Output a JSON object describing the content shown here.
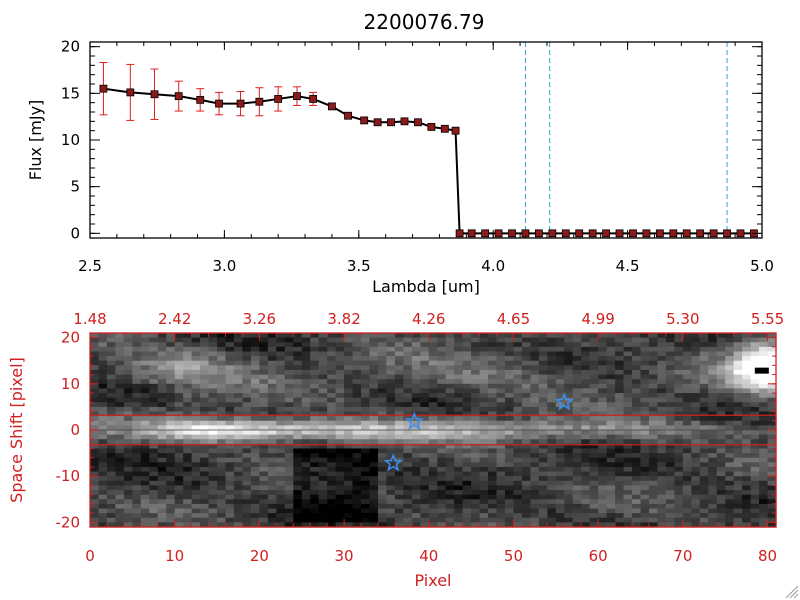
{
  "title": "2200076.79",
  "colors": {
    "flux_line": "#000000",
    "flux_marker": "#8b1a1a",
    "error_bar": "#dd2020",
    "vline": "#2aa6c8",
    "image_axis": "#d02020",
    "star": "#3a8ff0",
    "trace_box": "#d02020"
  },
  "chart_data": [
    {
      "type": "line",
      "title": "2200076.79",
      "xlabel": "Lambda [um]",
      "ylabel": "Flux [mJy]",
      "xlim": [
        2.5,
        5.0
      ],
      "ylim": [
        -0.5,
        20.5
      ],
      "xticks": [
        2.5,
        3.0,
        3.5,
        4.0,
        4.5,
        5.0
      ],
      "xtick_labels": [
        "2.5",
        "3.0",
        "3.5",
        "4.0",
        "4.5",
        "5.0"
      ],
      "yticks": [
        0,
        5,
        10,
        15,
        20
      ],
      "ytick_labels": [
        "0",
        "5",
        "10",
        "15",
        "20"
      ],
      "grid": false,
      "series": [
        {
          "x": [
            2.55,
            2.65,
            2.74,
            2.83,
            2.91,
            2.98,
            3.06,
            3.13,
            3.2,
            3.27,
            3.33,
            3.4,
            3.46,
            3.52,
            3.57,
            3.62,
            3.67,
            3.72,
            3.77,
            3.82,
            3.86,
            3.875,
            3.92,
            3.97,
            4.02,
            4.07,
            4.12,
            4.17,
            4.22,
            4.27,
            4.32,
            4.37,
            4.42,
            4.47,
            4.52,
            4.57,
            4.62,
            4.67,
            4.72,
            4.77,
            4.82,
            4.87,
            4.92,
            4.97
          ],
          "y": [
            15.5,
            15.1,
            14.9,
            14.7,
            14.3,
            13.9,
            13.9,
            14.1,
            14.4,
            14.7,
            14.4,
            13.6,
            12.6,
            12.1,
            11.9,
            11.9,
            12.0,
            11.9,
            11.4,
            11.2,
            11.0,
            0,
            0,
            0,
            0,
            0,
            0,
            0,
            0,
            0,
            0,
            0,
            0,
            0,
            0,
            0,
            0,
            0,
            0,
            0,
            0,
            0,
            0,
            0
          ],
          "yerr": [
            2.8,
            3.0,
            2.7,
            1.6,
            1.2,
            1.2,
            1.3,
            1.5,
            1.3,
            1.0,
            0.7,
            0.3,
            0.3,
            0.3,
            0.2,
            0.2,
            0.2,
            0.2,
            0.2,
            0.2,
            0.2,
            0,
            0,
            0,
            0,
            0,
            0,
            0,
            0,
            0,
            0,
            0,
            0,
            0,
            0,
            0,
            0,
            0,
            0,
            0,
            0,
            0,
            0,
            0
          ]
        }
      ],
      "vlines": [
        4.12,
        4.21,
        4.87
      ]
    },
    {
      "type": "heatmap",
      "xlabel": "Pixel",
      "ylabel": "Space Shift [pixel]",
      "xlim": [
        0,
        81
      ],
      "ylim": [
        -21,
        21
      ],
      "xticks": [
        0,
        10,
        20,
        30,
        40,
        50,
        60,
        70,
        80
      ],
      "xtick_labels": [
        "0",
        "10",
        "20",
        "30",
        "40",
        "50",
        "60",
        "70",
        "80"
      ],
      "yticks": [
        -20,
        -10,
        0,
        10,
        20
      ],
      "ytick_labels": [
        "-20",
        "-10",
        "0",
        "10",
        "20"
      ],
      "top_axis_ticks": [
        0,
        10,
        20,
        30,
        40,
        50,
        60,
        70,
        80
      ],
      "top_axis_labels": [
        "1.48",
        "2.42",
        "3.26",
        "3.82",
        "4.26",
        "4.65",
        "4.99",
        "5.30",
        "5.55"
      ],
      "trace_window": [
        -3.2,
        3.2
      ],
      "stars": [
        {
          "x": 38.3,
          "y": 1.8
        },
        {
          "x": 56.0,
          "y": 6.0
        },
        {
          "x": 35.8,
          "y": -7.2
        }
      ]
    }
  ]
}
